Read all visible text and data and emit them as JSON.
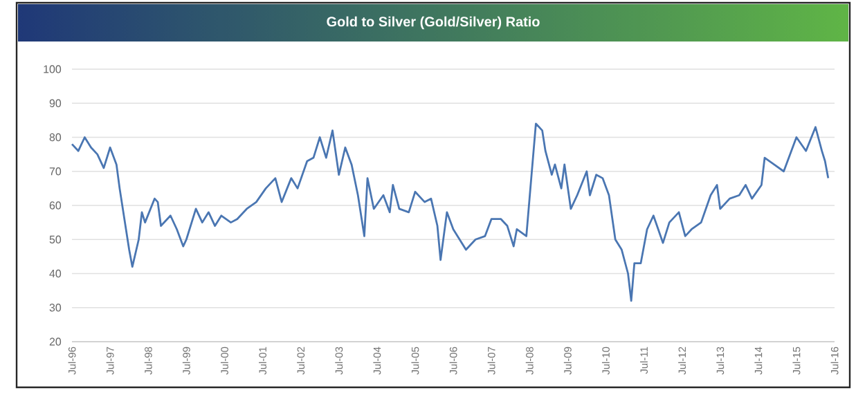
{
  "chart_data": {
    "type": "line",
    "title": "Gold to Silver (Gold/Silver) Ratio",
    "x": [
      "1996-07",
      "1996-09",
      "1996-11",
      "1997-01",
      "1997-03",
      "1997-05",
      "1997-06",
      "1997-07",
      "1997-09",
      "1997-10",
      "1997-12",
      "1998-01",
      "1998-02",
      "1998-04",
      "1998-05",
      "1998-06",
      "1998-09",
      "1998-10",
      "1998-11",
      "1999-02",
      "1999-04",
      "1999-06",
      "1999-07",
      "1999-10",
      "1999-12",
      "2000-02",
      "2000-04",
      "2000-06",
      "2000-09",
      "2000-11",
      "2001-02",
      "2001-05",
      "2001-08",
      "2001-11",
      "2002-01",
      "2002-04",
      "2002-06",
      "2002-09",
      "2002-11",
      "2003-01",
      "2003-03",
      "2003-05",
      "2003-07",
      "2003-09",
      "2003-11",
      "2004-01",
      "2004-03",
      "2004-04",
      "2004-06",
      "2004-09",
      "2004-11",
      "2004-12",
      "2005-02",
      "2005-05",
      "2005-07",
      "2005-10",
      "2005-12",
      "2006-02",
      "2006-03",
      "2006-05",
      "2006-07",
      "2006-09",
      "2006-11",
      "2007-02",
      "2007-05",
      "2007-07",
      "2007-10",
      "2007-12",
      "2008-02",
      "2008-03",
      "2008-06",
      "2008-07",
      "2008-09",
      "2008-11",
      "2008-12",
      "2009-02",
      "2009-03",
      "2009-05",
      "2009-06",
      "2009-08",
      "2009-10",
      "2010-01",
      "2010-02",
      "2010-04",
      "2010-06",
      "2010-08",
      "2010-10",
      "2010-12",
      "2011-02",
      "2011-03",
      "2011-04",
      "2011-06",
      "2011-08",
      "2011-10",
      "2012-01",
      "2012-03",
      "2012-06",
      "2012-08",
      "2012-10",
      "2013-01",
      "2013-04",
      "2013-06",
      "2013-07",
      "2013-10",
      "2014-01",
      "2014-03",
      "2014-05",
      "2014-08",
      "2014-09",
      "2014-12",
      "2015-03",
      "2015-05",
      "2015-07",
      "2015-10",
      "2016-01",
      "2016-03",
      "2016-04",
      "2016-05"
    ],
    "series": [
      {
        "color": "#4a76b2",
        "values": [
          78,
          76,
          80,
          77,
          75,
          71,
          74,
          77,
          72,
          65,
          53,
          47,
          42,
          50,
          58,
          55,
          62,
          61,
          54,
          57,
          53,
          48,
          50,
          59,
          55,
          58,
          54,
          57,
          55,
          56,
          59,
          61,
          65,
          68,
          61,
          68,
          65,
          73,
          74,
          80,
          74,
          82,
          69,
          77,
          72,
          63,
          51,
          68,
          59,
          63,
          58,
          66,
          59,
          58,
          64,
          61,
          62,
          54,
          44,
          58,
          53,
          50,
          47,
          50,
          51,
          56,
          56,
          54,
          48,
          53,
          51,
          62,
          84,
          82,
          76,
          69,
          72,
          65,
          72,
          59,
          63,
          70,
          63,
          69,
          68,
          63,
          50,
          47,
          40,
          32,
          43,
          43,
          53,
          57,
          49,
          55,
          58,
          51,
          53,
          55,
          63,
          66,
          59,
          62,
          63,
          66,
          62,
          66,
          74,
          72,
          70,
          75,
          80,
          76,
          83,
          76,
          73,
          68
        ]
      }
    ],
    "xlim": [
      "1996-07",
      "2016-07"
    ],
    "xticks": [
      {
        "value": "1996-07",
        "label": "Jul-96"
      },
      {
        "value": "1997-07",
        "label": "Jul-97"
      },
      {
        "value": "1998-07",
        "label": "Jul-98"
      },
      {
        "value": "1999-07",
        "label": "Jul-99"
      },
      {
        "value": "2000-07",
        "label": "Jul-00"
      },
      {
        "value": "2001-07",
        "label": "Jul-01"
      },
      {
        "value": "2002-07",
        "label": "Jul-02"
      },
      {
        "value": "2003-07",
        "label": "Jul-03"
      },
      {
        "value": "2004-07",
        "label": "Jul-04"
      },
      {
        "value": "2005-07",
        "label": "Jul-05"
      },
      {
        "value": "2006-07",
        "label": "Jul-06"
      },
      {
        "value": "2007-07",
        "label": "Jul-07"
      },
      {
        "value": "2008-07",
        "label": "Jul-08"
      },
      {
        "value": "2009-07",
        "label": "Jul-09"
      },
      {
        "value": "2010-07",
        "label": "Jul-10"
      },
      {
        "value": "2011-07",
        "label": "Jul-11"
      },
      {
        "value": "2012-07",
        "label": "Jul-12"
      },
      {
        "value": "2013-07",
        "label": "Jul-13"
      },
      {
        "value": "2014-07",
        "label": "Jul-14"
      },
      {
        "value": "2015-07",
        "label": "Jul-15"
      },
      {
        "value": "2016-07",
        "label": "Jul-16"
      }
    ],
    "ylim": [
      20,
      100
    ],
    "yticks": [
      20,
      30,
      40,
      50,
      60,
      70,
      80,
      90,
      100
    ],
    "grid": "y"
  }
}
